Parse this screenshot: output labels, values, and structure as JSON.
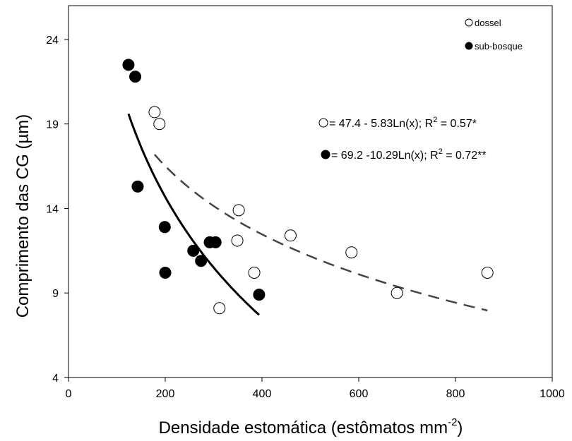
{
  "chart_data": {
    "type": "scatter",
    "xlabel": "Densidade estomática (estômatos mm",
    "xlabel_sup": "-2",
    "xlabel_close": ")",
    "ylabel": "Comprimento das CG (µm)",
    "xlim": [
      0,
      1000
    ],
    "ylim": [
      4,
      26
    ],
    "x_ticks": [
      0,
      200,
      400,
      600,
      800,
      1000
    ],
    "y_ticks": [
      4,
      9,
      14,
      19,
      24
    ],
    "grid": false,
    "legend_position": "top-right",
    "series": [
      {
        "name": "dossel",
        "marker": "open-circle",
        "points": [
          {
            "x": 178,
            "y": 19.7
          },
          {
            "x": 188,
            "y": 19.0
          },
          {
            "x": 352,
            "y": 13.9
          },
          {
            "x": 349,
            "y": 12.1
          },
          {
            "x": 459,
            "y": 12.4
          },
          {
            "x": 384,
            "y": 10.2
          },
          {
            "x": 312,
            "y": 8.1
          },
          {
            "x": 585,
            "y": 11.4
          },
          {
            "x": 679,
            "y": 9.0
          },
          {
            "x": 866,
            "y": 10.2
          }
        ],
        "fit": {
          "a": 47.4,
          "b": -5.83,
          "x_from": 178,
          "x_to": 866,
          "style": "dashed"
        },
        "equation_prefix": " = 47.4 - 5.83Ln(x); R",
        "equation_sup": "2",
        "equation_suffix": " = 0.57*"
      },
      {
        "name": "sub-bosque",
        "marker": "filled-circle",
        "points": [
          {
            "x": 124,
            "y": 22.5
          },
          {
            "x": 138,
            "y": 21.8
          },
          {
            "x": 143,
            "y": 15.3
          },
          {
            "x": 199,
            "y": 12.9
          },
          {
            "x": 200,
            "y": 10.2
          },
          {
            "x": 258,
            "y": 11.5
          },
          {
            "x": 274,
            "y": 10.9
          },
          {
            "x": 292,
            "y": 12.0
          },
          {
            "x": 304,
            "y": 12.0
          },
          {
            "x": 394,
            "y": 8.9
          }
        ],
        "fit": {
          "a": 69.2,
          "b": -10.29,
          "x_from": 124,
          "x_to": 394,
          "style": "solid"
        },
        "equation_prefix": " = 69.2 -10.29Ln(x); R",
        "equation_sup": "2",
        "equation_suffix": " = 0.72**"
      }
    ]
  }
}
